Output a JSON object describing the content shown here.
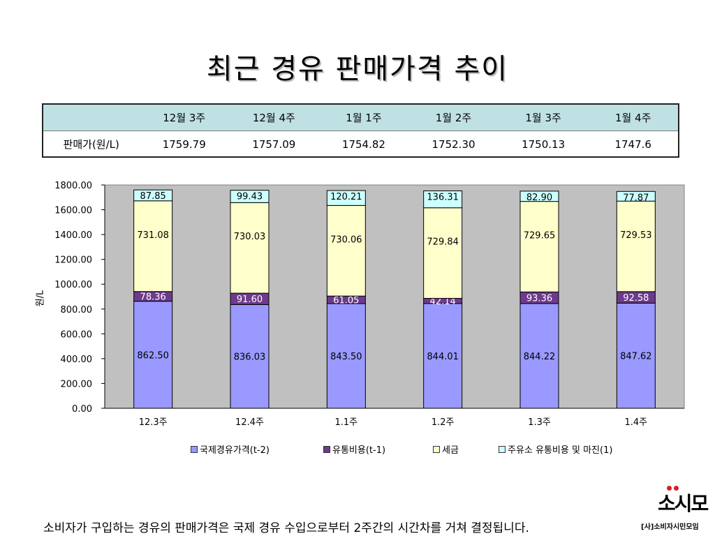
{
  "title": "최근 경유 판매가격 추이",
  "price_table": {
    "row_label": "판매가(원/L)",
    "weeks": [
      "12월 3주",
      "12월 4주",
      "1월 1주",
      "1월 2주",
      "1월 3주",
      "1월 4주"
    ],
    "prices": [
      "1759.79",
      "1757.09",
      "1754.82",
      "1752.30",
      "1750.13",
      "1747.6"
    ]
  },
  "chart_data": {
    "type": "bar",
    "stacked": true,
    "categories": [
      "12.3주",
      "12.4주",
      "1.1주",
      "1.2주",
      "1.3주",
      "1.4주"
    ],
    "ylabel": "원/L",
    "ylim": [
      0,
      1800
    ],
    "yticks": [
      "0.00",
      "200.00",
      "400.00",
      "600.00",
      "800.00",
      "1000.00",
      "1200.00",
      "1400.00",
      "1600.00",
      "1800.00"
    ],
    "grid": false,
    "legend_position": "bottom",
    "series": [
      {
        "name": "국제경유가격(t-2)",
        "color": "#9999ff",
        "values": [
          862.5,
          836.03,
          843.5,
          844.01,
          844.22,
          847.62
        ],
        "labels": [
          "862.50",
          "836.03",
          "843.50",
          "844.01",
          "844.22",
          "847.62"
        ]
      },
      {
        "name": "유통비용(t-1)",
        "color": "#6d3a8c",
        "values": [
          78.36,
          91.6,
          61.05,
          42.14,
          93.36,
          92.58
        ],
        "labels": [
          "78.36",
          "91.60",
          "61.05",
          "42.14",
          "93.36",
          "92.58"
        ]
      },
      {
        "name": "세금",
        "color": "#ffffcc",
        "values": [
          731.08,
          730.03,
          730.06,
          729.84,
          729.65,
          729.53
        ],
        "labels": [
          "731.08",
          "730.03",
          "730.06",
          "729.84",
          "729.65",
          "729.53"
        ]
      },
      {
        "name": "주유소 유통비용 및 마진(1)",
        "color": "#ccffff",
        "values": [
          87.85,
          99.43,
          120.21,
          136.31,
          82.9,
          77.87
        ],
        "labels": [
          "87.85",
          "99.43",
          "120.21",
          "136.31",
          "82.90",
          "77.87"
        ]
      }
    ]
  },
  "footer_text": "소비자가 구입하는 경유의 판매가격은 국제 경유 수입으로부터 2주간의 시간차를 거쳐 결정됩니다.",
  "logo": {
    "mark": "소시모",
    "org": "[사]소비자시민모임"
  }
}
